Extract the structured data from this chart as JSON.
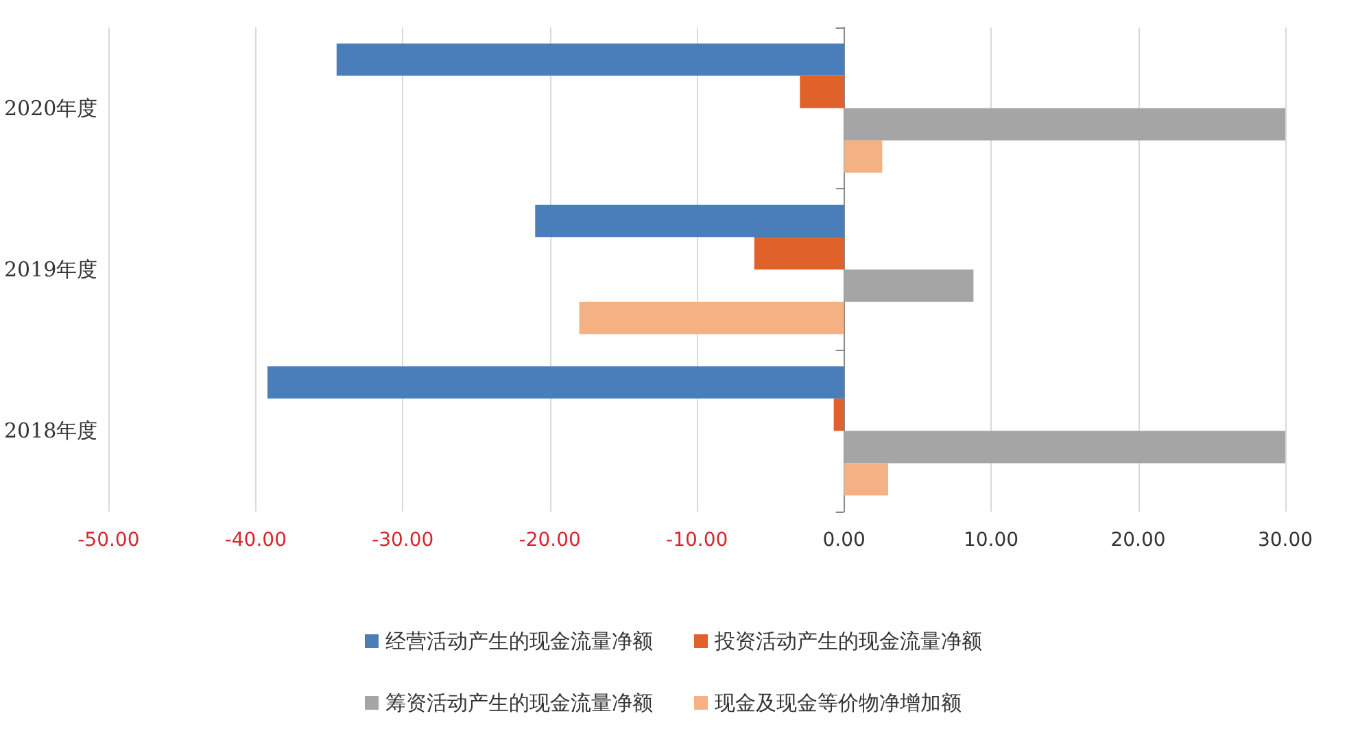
{
  "chart_data": {
    "type": "bar",
    "orientation": "horizontal",
    "categories": [
      "2020年度",
      "2019年度",
      "2018年度"
    ],
    "series": [
      {
        "name": "经营活动产生的现金流量净额",
        "color": "#4a7ebb",
        "values": [
          -34.5,
          -21.0,
          -39.2
        ]
      },
      {
        "name": "投资活动产生的现金流量净额",
        "color": "#e0622a",
        "values": [
          -3.0,
          -6.1,
          -0.7
        ]
      },
      {
        "name": "筹资活动产生的现金流量净额",
        "color": "#a5a5a5",
        "values": [
          30.0,
          8.8,
          30.0
        ]
      },
      {
        "name": "现金及现金等价物净增加额",
        "color": "#f4b183",
        "values": [
          2.6,
          -18.0,
          3.0
        ]
      }
    ],
    "xlim": [
      -50,
      30
    ],
    "xticks": [
      {
        "value": -50,
        "label": "-50.00"
      },
      {
        "value": -40,
        "label": "-40.00"
      },
      {
        "value": -30,
        "label": "-30.00"
      },
      {
        "value": -20,
        "label": "-20.00"
      },
      {
        "value": -10,
        "label": "-10.00"
      },
      {
        "value": 0,
        "label": "0.00"
      },
      {
        "value": 10,
        "label": "10.00"
      },
      {
        "value": 20,
        "label": "20.00"
      },
      {
        "value": 30,
        "label": "30.00"
      }
    ],
    "grid": "x",
    "legend": "bottom"
  }
}
